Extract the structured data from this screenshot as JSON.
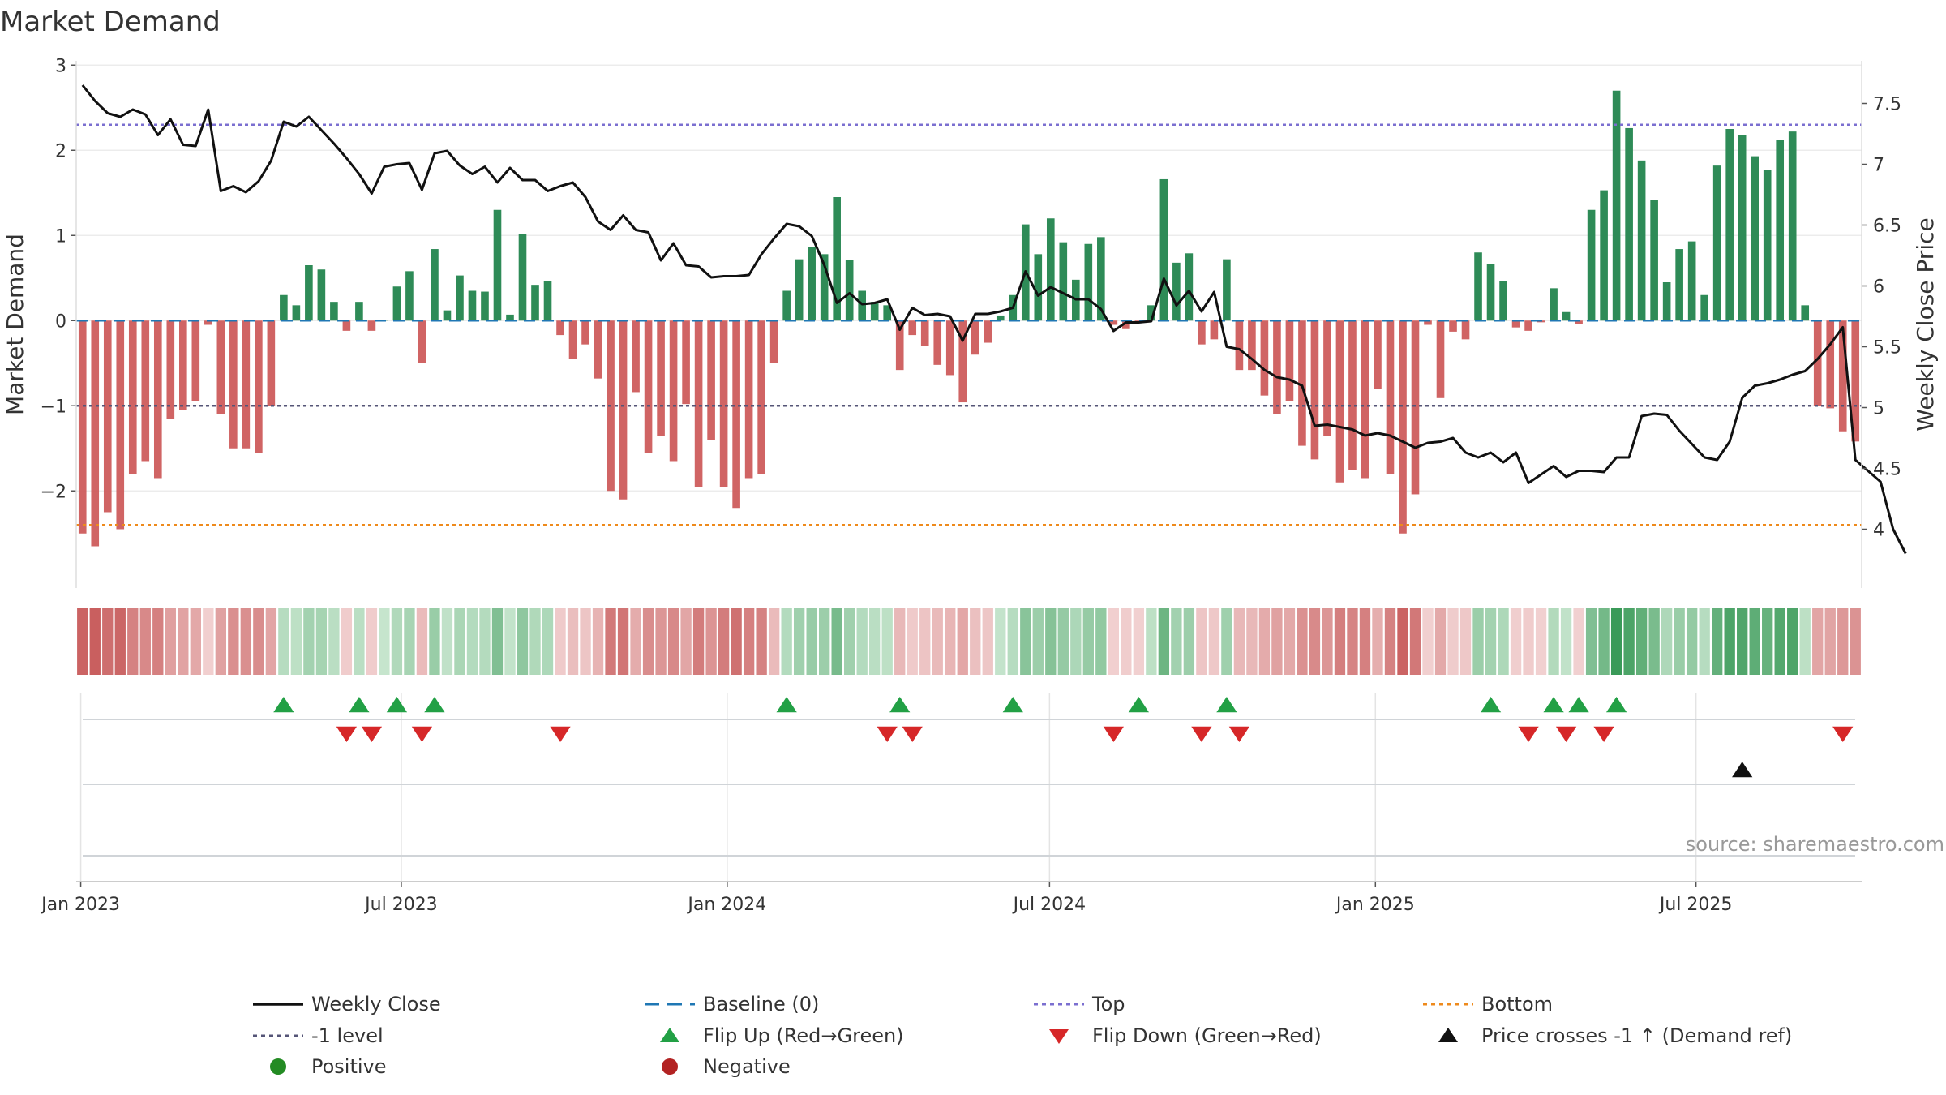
{
  "chart_data": {
    "type": "bar",
    "title": "Market Demand",
    "ylabel_left": "Market Demand",
    "ylabel_right": "Weekly Close Price",
    "source": "source: sharemaestro.com",
    "ylim_left": [
      -2.95,
      3.05
    ],
    "ylim_right": [
      3.65,
      7.85
    ],
    "yticks_left": [
      {
        "v": 3,
        "label": "3"
      },
      {
        "v": 2,
        "label": "2"
      },
      {
        "v": 1,
        "label": "1"
      },
      {
        "v": 0,
        "label": "0"
      },
      {
        "v": -1,
        "label": "−1"
      },
      {
        "v": -2,
        "label": "−2"
      }
    ],
    "yticks_right": [
      {
        "v": 7.5,
        "label": "7.5"
      },
      {
        "v": 7,
        "label": "7"
      },
      {
        "v": 6.5,
        "label": "6.5"
      },
      {
        "v": 6,
        "label": "6"
      },
      {
        "v": 5.5,
        "label": "5.5"
      },
      {
        "v": 5,
        "label": "5"
      },
      {
        "v": 4.5,
        "label": "4.5"
      },
      {
        "v": 4,
        "label": "4"
      }
    ],
    "x_start": "2023-01-02",
    "x_end": "2025-09-29",
    "x_ticks": [
      {
        "date": "2023-01-01",
        "label": "Jan 2023"
      },
      {
        "date": "2023-07-01",
        "label": "Jul 2023"
      },
      {
        "date": "2024-01-01",
        "label": "Jan 2024"
      },
      {
        "date": "2024-07-01",
        "label": "Jul 2024"
      },
      {
        "date": "2025-01-01",
        "label": "Jan 2025"
      },
      {
        "date": "2025-07-01",
        "label": "Jul 2025"
      }
    ],
    "reference_lines": [
      {
        "name": "Baseline (0)",
        "value": 0,
        "color": "#1f77b4",
        "style": "dashed"
      },
      {
        "name": "Top",
        "value": 2.3,
        "color": "#7b6fd0",
        "style": "dotted"
      },
      {
        "name": "-1 level",
        "value": -1,
        "color": "#555577",
        "style": "dotted"
      },
      {
        "name": "Bottom",
        "value": -2.4,
        "color": "#ee8a1c",
        "style": "dotted"
      }
    ],
    "colors": {
      "positive": "#2e8b57",
      "negative": "#cd5c5c",
      "price_line": "#111111",
      "flip_up": "#22a045",
      "flip_down": "#d62728",
      "price_cross": "#111111",
      "legend_positive_dot": "#238b23",
      "legend_negative_dot": "#b22222"
    },
    "demand": [
      -2.5,
      -2.65,
      -2.25,
      -2.45,
      -1.8,
      -1.65,
      -1.85,
      -1.15,
      -1.05,
      -0.95,
      -0.05,
      -1.1,
      -1.5,
      -1.5,
      -1.55,
      -1,
      0.3,
      0.18,
      0.65,
      0.6,
      0.22,
      -0.12,
      0.22,
      -0.12,
      0.01,
      0.4,
      0.58,
      -0.5,
      0.84,
      0.12,
      0.53,
      0.35,
      0.34,
      1.3,
      0.07,
      1.02,
      0.42,
      0.46,
      -0.17,
      -0.45,
      -0.28,
      -0.68,
      -2.0,
      -2.1,
      -0.84,
      -1.55,
      -1.35,
      -1.65,
      -0.98,
      -1.95,
      -1.4,
      -1.95,
      -2.2,
      -1.85,
      -1.8,
      -0.5,
      0.35,
      0.72,
      0.86,
      0.78,
      1.45,
      0.71,
      0.35,
      0.22,
      0.18,
      -0.58,
      -0.17,
      -0.3,
      -0.52,
      -0.64,
      -0.96,
      -0.4,
      -0.26,
      0.06,
      0.3,
      1.13,
      0.78,
      1.2,
      0.92,
      0.48,
      0.9,
      0.98,
      -0.05,
      -0.1,
      -0.02,
      0.18,
      1.66,
      0.68,
      0.79,
      -0.28,
      -0.22,
      0.72,
      -0.58,
      -0.58,
      -0.88,
      -1.1,
      -0.95,
      -1.47,
      -1.63,
      -1.35,
      -1.9,
      -1.75,
      -1.85,
      -0.8,
      -1.8,
      -2.5,
      -2.04,
      -0.05,
      -0.91,
      -0.13,
      -0.22,
      0.8,
      0.66,
      0.46,
      -0.08,
      -0.12,
      -0.02,
      0.38,
      0.1,
      -0.04,
      1.3,
      1.53,
      2.7,
      2.26,
      1.88,
      1.42,
      0.45,
      0.84,
      0.93,
      0.3,
      1.82,
      2.25,
      2.18,
      1.93,
      1.77,
      2.12,
      2.22,
      0.18,
      -1.0,
      -1.03,
      -1.3,
      -1.42
    ],
    "price": [
      7.65,
      7.52,
      7.42,
      7.39,
      7.45,
      7.41,
      7.24,
      7.37,
      7.16,
      7.15,
      7.45,
      6.78,
      6.82,
      6.77,
      6.86,
      7.03,
      7.35,
      7.31,
      7.39,
      7.28,
      7.17,
      7.05,
      6.92,
      6.76,
      6.98,
      7.0,
      7.01,
      6.79,
      7.09,
      7.11,
      6.99,
      6.92,
      6.98,
      6.85,
      6.97,
      6.87,
      6.87,
      6.78,
      6.82,
      6.85,
      6.73,
      6.53,
      6.46,
      6.58,
      6.46,
      6.44,
      6.21,
      6.35,
      6.17,
      6.16,
      6.07,
      6.08,
      6.08,
      6.09,
      6.26,
      6.39,
      6.51,
      6.49,
      6.41,
      6.17,
      5.86,
      5.94,
      5.85,
      5.86,
      5.89,
      5.64,
      5.82,
      5.76,
      5.77,
      5.75,
      5.55,
      5.77,
      5.77,
      5.79,
      5.82,
      6.12,
      5.92,
      5.99,
      5.94,
      5.89,
      5.89,
      5.81,
      5.63,
      5.7,
      5.7,
      5.71,
      6.06,
      5.84,
      5.96,
      5.79,
      5.95,
      5.5,
      5.48,
      5.4,
      5.31,
      5.25,
      5.23,
      5.18,
      4.85,
      4.86,
      4.84,
      4.82,
      4.77,
      4.79,
      4.77,
      4.72,
      4.67,
      4.71,
      4.72,
      4.75,
      4.63,
      4.59,
      4.63,
      4.55,
      4.63,
      4.38,
      4.45,
      4.52,
      4.43,
      4.48,
      4.48,
      4.47,
      4.59,
      4.59,
      4.93,
      4.95,
      4.94,
      4.81,
      4.7,
      4.59,
      4.57,
      4.72,
      5.08,
      5.18,
      5.2,
      5.23,
      5.27,
      5.3,
      5.4,
      5.52,
      5.66,
      4.57,
      4.48,
      4.39,
      4.0,
      3.8
    ],
    "flip_up_weeks": [
      16,
      22,
      25,
      28,
      56,
      65,
      74,
      84,
      91,
      112,
      117,
      119,
      122
    ],
    "flip_down_weeks": [
      21,
      23,
      27,
      38,
      64,
      66,
      82,
      89,
      92,
      115,
      118,
      121,
      140
    ],
    "price_cross_weeks": [
      132
    ]
  },
  "legend": [
    {
      "key": "weekly-close",
      "label": "Weekly Close",
      "marker": "line",
      "color": "#111111"
    },
    {
      "key": "baseline",
      "label": "Baseline (0)",
      "marker": "dash",
      "color": "#1f77b4"
    },
    {
      "key": "top",
      "label": "Top",
      "marker": "dot",
      "color": "#7b6fd0"
    },
    {
      "key": "bottom",
      "label": "Bottom",
      "marker": "dot",
      "color": "#ee8a1c"
    },
    {
      "key": "minus-one",
      "label": "-1 level",
      "marker": "dot",
      "color": "#555577"
    },
    {
      "key": "flip-up",
      "label": "Flip Up (Red→Green)",
      "marker": "tri-up",
      "color": "#22a045"
    },
    {
      "key": "flip-down",
      "label": "Flip Down (Green→Red)",
      "marker": "tri-down",
      "color": "#d62728"
    },
    {
      "key": "price-cross",
      "label": "Price crosses -1 ↑ (Demand ref)",
      "marker": "tri-up",
      "color": "#111111"
    },
    {
      "key": "positive",
      "label": "Positive",
      "marker": "circle",
      "color": "#238b23"
    },
    {
      "key": "negative",
      "label": "Negative",
      "marker": "circle",
      "color": "#b22222"
    }
  ]
}
